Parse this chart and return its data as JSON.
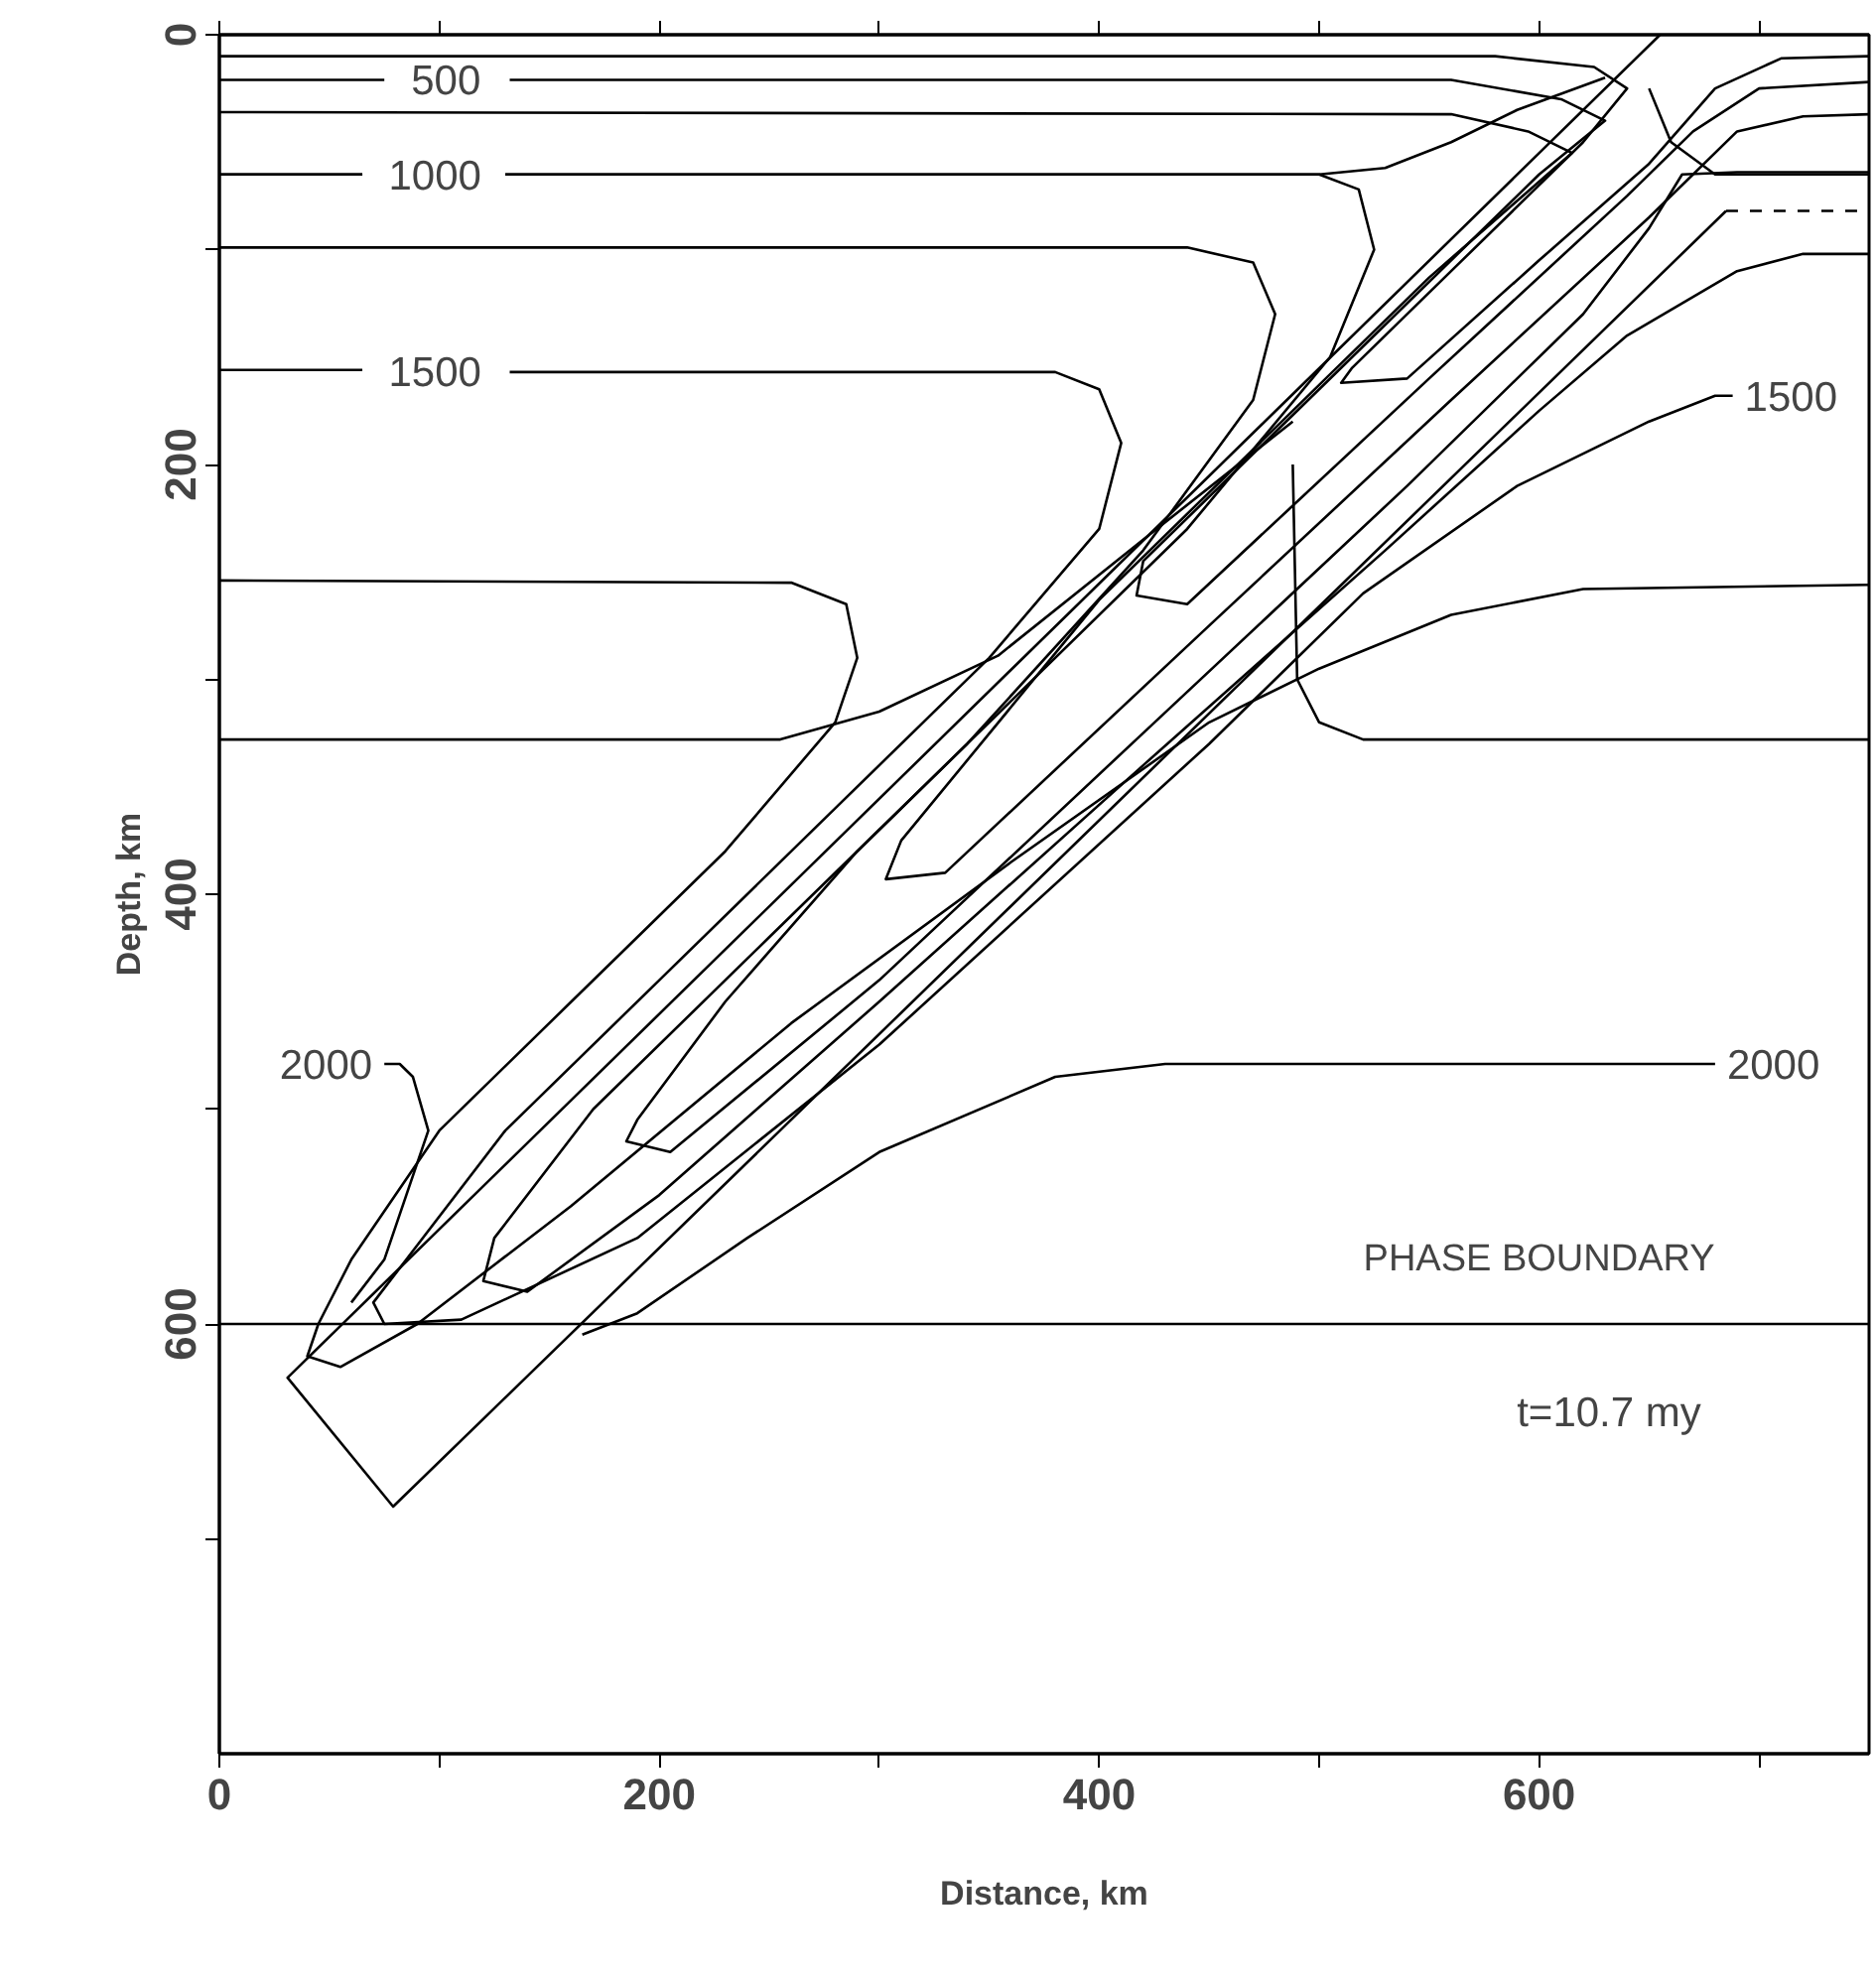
{
  "chart_data": {
    "type": "line",
    "xlabel": "Distance, km",
    "ylabel": "Depth, km",
    "xlim": [
      0,
      750
    ],
    "ylim": [
      800,
      0
    ],
    "xticks": [
      0,
      {
        "value": 100,
        "label": null
      },
      200,
      {
        "value": 300,
        "label": null
      },
      400,
      {
        "value": 500,
        "label": null
      },
      600,
      {
        "value": 700,
        "label": null
      }
    ],
    "yticks": [
      0,
      {
        "value": 100,
        "label": null
      },
      200,
      {
        "value": 300,
        "label": null
      },
      400,
      {
        "value": 500,
        "label": null
      },
      600,
      {
        "value": 700,
        "label": null
      }
    ],
    "grid": false,
    "marker": "none",
    "ref_lines": [
      {
        "axis": "y",
        "value": 600,
        "label": "PHASE BOUNDARY",
        "color": "#000000"
      }
    ],
    "annotations": [
      "t=10.7 my"
    ],
    "series": [
      {
        "color": "#000000",
        "x": [
          655,
          31,
          79,
          685
        ],
        "values": [
          0,
          625,
          685,
          82
        ]
      },
      {
        "color": "#000000",
        "line_style": "dashed",
        "x": [
          685,
          750
        ],
        "values": [
          82,
          82
        ]
      },
      {
        "color": "#000000",
        "x": [
          0,
          580,
          625,
          640,
          620,
          560,
          515,
          510,
          540,
          600,
          650,
          680,
          710,
          750
        ],
        "values": [
          10,
          10,
          15,
          25,
          50,
          110,
          155,
          162,
          160,
          105,
          60,
          25,
          11,
          10
        ]
      },
      {
        "name": "500",
        "color": "#000000",
        "x": [
          0,
          75,
          103,
          132,
          560,
          610,
          630,
          600,
          500,
          420,
          417,
          440,
          550,
          640,
          670,
          700,
          750
        ],
        "values": [
          21,
          21,
          null,
          21,
          21,
          30,
          40,
          65,
          165,
          245,
          261,
          265,
          160,
          75,
          45,
          25,
          22
        ]
      },
      {
        "color": "#000000",
        "x": [
          0,
          560,
          595,
          615,
          550,
          400,
          310,
          303,
          330,
          450,
          560,
          650,
          690,
          720,
          750
        ],
        "values": [
          36,
          37,
          45,
          55,
          113,
          263,
          375,
          393,
          390,
          275,
          170,
          85,
          45,
          38,
          37
        ]
      },
      {
        "name": "1000",
        "color": "#000000",
        "x": [
          0,
          65,
          98,
          130,
          500,
          518,
          525,
          505,
          440,
          360,
          290,
          230,
          190,
          185,
          205,
          300,
          420,
          540,
          620,
          650,
          665,
          690,
          750
        ],
        "values": [
          65,
          65,
          null,
          65,
          65,
          72,
          100,
          150,
          230,
          310,
          380,
          450,
          505,
          515,
          520,
          440,
          325,
          210,
          130,
          90,
          65,
          64,
          64
        ]
      },
      {
        "color": "#000000",
        "x": [
          0,
          440,
          470,
          480,
          470,
          420,
          340,
          250,
          170,
          125,
          120,
          140,
          200,
          300,
          420,
          530,
          600,
          640,
          690,
          720,
          750
        ],
        "values": [
          99,
          99,
          106,
          130,
          170,
          240,
          330,
          420,
          500,
          560,
          580,
          585,
          540,
          450,
          340,
          240,
          175,
          140,
          110,
          102,
          102
        ]
      },
      {
        "name": "1500",
        "color": "#000000",
        "x": [
          0,
          65,
          98,
          132,
          380,
          400,
          410,
          400,
          350,
          280,
          200,
          130,
          85,
          70,
          75,
          110,
          190,
          300,
          450,
          520,
          590,
          650,
          680,
          688
        ],
        "values": [
          156,
          156,
          null,
          157,
          157,
          165,
          190,
          230,
          290,
          360,
          440,
          510,
          570,
          590,
          600,
          598,
          560,
          470,
          330,
          260,
          210,
          180,
          168,
          168
        ]
      },
      {
        "color": "#000000",
        "x": [
          0,
          260,
          285,
          290,
          280,
          230,
          160,
          100,
          60,
          45,
          40,
          55,
          90,
          160,
          260,
          360,
          450,
          500,
          560,
          620,
          750
        ],
        "values": [
          254,
          255,
          265,
          290,
          320,
          380,
          450,
          510,
          570,
          600,
          615,
          620,
          600,
          545,
          460,
          385,
          320,
          295,
          270,
          258,
          256
        ]
      },
      {
        "name": "2000",
        "color": "#000000",
        "x": [
          75,
          82,
          88,
          95,
          85,
          75,
          60
        ],
        "values": [
          479,
          479,
          485,
          510,
          540,
          570,
          590
        ]
      },
      {
        "name": "2000",
        "color": "#000000",
        "x": [
          680,
          430,
          380,
          300,
          240,
          190,
          165
        ],
        "values": [
          479,
          479,
          485,
          520,
          560,
          595,
          605
        ]
      },
      {
        "color": "#000000",
        "x": [
          0,
          65,
          98,
          130,
          500,
          530,
          560,
          590,
          630
        ],
        "values": [
          65,
          65,
          null,
          65,
          65,
          62,
          50,
          35,
          20
        ]
      },
      {
        "color": "#000000",
        "x": [
          650,
          660,
          680,
          750
        ],
        "values": [
          25,
          50,
          65,
          65
        ]
      },
      {
        "color": "#000000",
        "x": [
          0,
          255,
          300,
          354,
          420,
          488
        ],
        "values": [
          328,
          328,
          315,
          289,
          235,
          180
        ]
      },
      {
        "color": "#000000",
        "x": [
          488,
          490,
          500,
          520,
          750
        ],
        "values": [
          200,
          300,
          320,
          328,
          328
        ]
      }
    ]
  }
}
